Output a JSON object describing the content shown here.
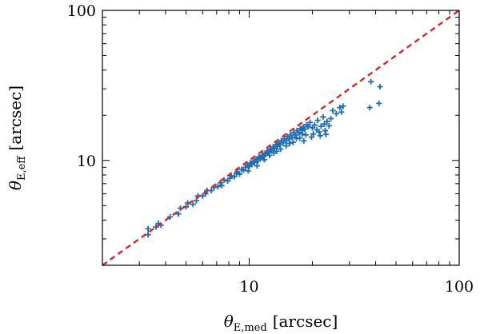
{
  "chart_data": {
    "type": "scatter",
    "x_scale": "log",
    "y_scale": "log",
    "xlim": [
      2,
      100
    ],
    "ylim": [
      2,
      100
    ],
    "x_ticks": [
      10,
      100
    ],
    "y_ticks": [
      10,
      100
    ],
    "x_tick_labels": [
      "10",
      "100"
    ],
    "y_tick_labels": [
      "10",
      "100"
    ],
    "xlabel": {
      "symbol": "θ",
      "sub": "E,med",
      "unit": "[arcsec]"
    },
    "ylabel": {
      "symbol": "θ",
      "sub": "E,eff",
      "unit": "[arcsec]"
    },
    "grid": false,
    "marker": "plus",
    "colors": {
      "points": "#1f6db3",
      "reference_line": "#d62728",
      "axes": "#000000"
    },
    "reference_line": {
      "style": "dashed",
      "relation": "y = x"
    },
    "points": [
      [
        3.3,
        3.2
      ],
      [
        3.3,
        3.5
      ],
      [
        3.6,
        3.6
      ],
      [
        3.7,
        3.8
      ],
      [
        3.8,
        3.7
      ],
      [
        4.2,
        4.2
      ],
      [
        4.6,
        4.4
      ],
      [
        4.7,
        4.8
      ],
      [
        5.0,
        4.9
      ],
      [
        5.1,
        5.2
      ],
      [
        5.4,
        5.1
      ],
      [
        5.6,
        5.4
      ],
      [
        5.7,
        5.8
      ],
      [
        6.0,
        5.8
      ],
      [
        6.2,
        6.0
      ],
      [
        6.3,
        6.3
      ],
      [
        6.6,
        6.3
      ],
      [
        6.8,
        6.6
      ],
      [
        7.1,
        6.7
      ],
      [
        7.3,
        7.1
      ],
      [
        7.4,
        6.8
      ],
      [
        7.6,
        7.4
      ],
      [
        7.9,
        7.3
      ],
      [
        8.1,
        7.6
      ],
      [
        8.2,
        7.9
      ],
      [
        8.5,
        7.8
      ],
      [
        8.7,
        8.2
      ],
      [
        8.8,
        8.4
      ],
      [
        9.0,
        8.1
      ],
      [
        9.2,
        8.7
      ],
      [
        9.4,
        8.6
      ],
      [
        9.6,
        9.0
      ],
      [
        9.8,
        9.3
      ],
      [
        10.0,
        9.1
      ],
      [
        10.1,
        9.6
      ],
      [
        10.3,
        9.4
      ],
      [
        10.5,
        9.9
      ],
      [
        10.6,
        9.7
      ],
      [
        10.8,
        10.2
      ],
      [
        11.0,
        9.9
      ],
      [
        11.1,
        10.5
      ],
      [
        11.3,
        10.3
      ],
      [
        11.5,
        10.8
      ],
      [
        11.7,
        10.6
      ],
      [
        11.9,
        11.2
      ],
      [
        12.0,
        11.0
      ],
      [
        12.2,
        11.5
      ],
      [
        12.4,
        11.3
      ],
      [
        12.6,
        11.9
      ],
      [
        12.8,
        11.6
      ],
      [
        13.0,
        12.3
      ],
      [
        13.2,
        12.0
      ],
      [
        13.4,
        12.7
      ],
      [
        13.6,
        12.4
      ],
      [
        13.8,
        13.1
      ],
      [
        14.0,
        12.7
      ],
      [
        14.2,
        13.5
      ],
      [
        14.5,
        13.1
      ],
      [
        14.7,
        13.9
      ],
      [
        15.0,
        13.5
      ],
      [
        15.2,
        14.4
      ],
      [
        15.5,
        13.9
      ],
      [
        15.7,
        14.8
      ],
      [
        16.0,
        14.3
      ],
      [
        16.3,
        15.3
      ],
      [
        16.6,
        14.8
      ],
      [
        16.9,
        15.8
      ],
      [
        17.2,
        15.3
      ],
      [
        17.5,
        16.3
      ],
      [
        17.8,
        15.8
      ],
      [
        18.1,
        16.7
      ],
      [
        18.4,
        16.2
      ],
      [
        18.8,
        17.3
      ],
      [
        19.1,
        16.8
      ],
      [
        19.5,
        17.9
      ],
      [
        12.5,
        10.8
      ],
      [
        13.1,
        11.2
      ],
      [
        14.1,
        11.9
      ],
      [
        15.0,
        12.5
      ],
      [
        16.2,
        13.2
      ],
      [
        17.4,
        14.1
      ],
      [
        18.6,
        14.8
      ],
      [
        11.8,
        10.1
      ],
      [
        10.9,
        9.2
      ],
      [
        9.9,
        8.5
      ],
      [
        20.0,
        16.5
      ],
      [
        20.5,
        17.2
      ],
      [
        21.0,
        16.0
      ],
      [
        21.5,
        15.5
      ],
      [
        22.0,
        16.9
      ],
      [
        21.2,
        18.5
      ],
      [
        22.5,
        19.5
      ],
      [
        23.5,
        18.2
      ],
      [
        24.5,
        19.0
      ],
      [
        25.0,
        21.5
      ],
      [
        26.0,
        20.5
      ],
      [
        27.0,
        22.5
      ],
      [
        27.5,
        21.0
      ],
      [
        28.0,
        23.0
      ],
      [
        22.8,
        17.5
      ],
      [
        23.0,
        15.8
      ],
      [
        24.0,
        17.0
      ],
      [
        20.2,
        15.0
      ],
      [
        19.8,
        14.3
      ],
      [
        18.2,
        13.5
      ],
      [
        21.8,
        14.6
      ],
      [
        23.2,
        14.9
      ],
      [
        37.5,
        22.5
      ],
      [
        41.5,
        24.0
      ],
      [
        42.0,
        31.0
      ],
      [
        38.0,
        33.5
      ],
      [
        13.5,
        11.5
      ],
      [
        15.6,
        13.0
      ],
      [
        16.8,
        14.0
      ],
      [
        17.9,
        15.0
      ]
    ]
  }
}
